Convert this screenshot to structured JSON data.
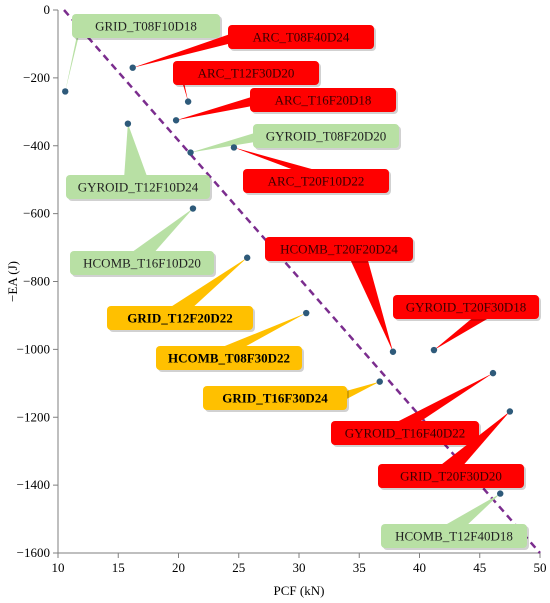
{
  "chart_data": {
    "type": "scatter",
    "title": "",
    "xlabel": "PCF (kN)",
    "ylabel": "−EA (J)",
    "xlim": [
      10,
      50
    ],
    "ylim": [
      -1600,
      0
    ],
    "xticks": [
      "10",
      "15",
      "20",
      "25",
      "30",
      "35",
      "40",
      "45",
      "50"
    ],
    "yticks": [
      "0",
      "−200",
      "−400",
      "−600",
      "−800",
      "−1000",
      "−1200",
      "−1400",
      "−1600"
    ],
    "grid": false,
    "legend": "none",
    "colors": {
      "point": "#2e5a7a",
      "trend": "#7b2d8e",
      "green_label": "#b8e0a4",
      "red_label": "#ff0000",
      "orange_label": "#ffc000"
    },
    "trend_line": {
      "x": [
        10.5,
        50
      ],
      "y": [
        0,
        -1600
      ],
      "style": "dashed"
    },
    "points": [
      {
        "name": "GRID_T08F10D18",
        "x": 10.6,
        "y": -240,
        "color": "green"
      },
      {
        "name": "ARC_T08F40D24",
        "x": 16.2,
        "y": -170,
        "color": "red"
      },
      {
        "name": "ARC_T12F30D20",
        "x": 20.8,
        "y": -270,
        "color": "red"
      },
      {
        "name": "ARC_T16F20D18",
        "x": 19.8,
        "y": -325,
        "color": "red"
      },
      {
        "name": "GYROID_T12F10D24",
        "x": 15.8,
        "y": -335,
        "color": "green"
      },
      {
        "name": "GYROID_T08F20D20",
        "x": 21.0,
        "y": -420,
        "color": "green"
      },
      {
        "name": "ARC_T20F10D22",
        "x": 24.6,
        "y": -405,
        "color": "red"
      },
      {
        "name": "HCOMB_T16F10D20",
        "x": 21.2,
        "y": -585,
        "color": "green"
      },
      {
        "name": "GRID_T12F20D22",
        "x": 25.7,
        "y": -730,
        "color": "orange"
      },
      {
        "name": "HCOMB_T08F30D22",
        "x": 30.6,
        "y": -893,
        "color": "orange"
      },
      {
        "name": "HCOMB_T20F20D24",
        "x": 37.8,
        "y": -1007,
        "color": "red"
      },
      {
        "name": "GYROID_T20F30D18",
        "x": 41.2,
        "y": -1002,
        "color": "red"
      },
      {
        "name": "GRID_T16F30D24",
        "x": 36.7,
        "y": -1095,
        "color": "orange"
      },
      {
        "name": "GYROID_T16F40D22",
        "x": 46.1,
        "y": -1070,
        "color": "red"
      },
      {
        "name": "GRID_T20F30D20",
        "x": 47.5,
        "y": -1183,
        "color": "red"
      },
      {
        "name": "HCOMB_T12F40D18",
        "x": 46.7,
        "y": -1425,
        "color": "green"
      }
    ]
  }
}
